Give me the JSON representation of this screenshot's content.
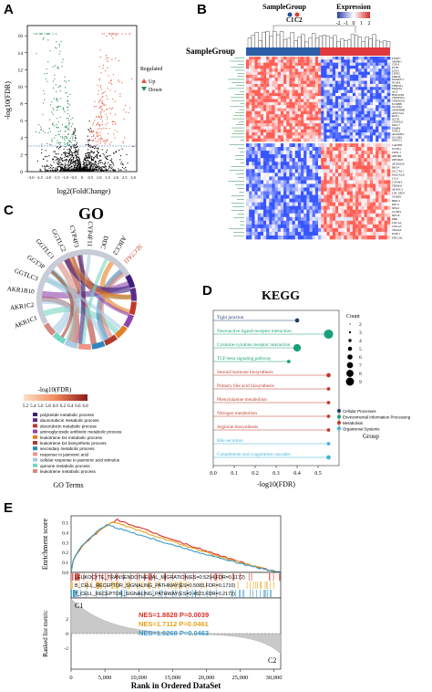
{
  "panels": {
    "A": {
      "letter": "A",
      "ylabel": "-log10(FDR)",
      "xlabel": "log2(FoldChange)",
      "legend_title": "Regulated",
      "legend_up": "Up",
      "legend_down": "Down",
      "y_ticks": [
        "0",
        "2",
        "4",
        "6",
        "8",
        "10",
        "12",
        "14",
        "16"
      ],
      "x_ticks": [
        "-3.0",
        "-2.5",
        "-2.0",
        "-1.5",
        "-1.0",
        "-0.5",
        "0",
        "0.5",
        "1.0",
        "1.5",
        "2.0",
        "2.5",
        "3.0"
      ],
      "up_color": "#e8553a",
      "down_color": "#2e8b57"
    },
    "B": {
      "letter": "B",
      "legend_group_title": "SampleGroup",
      "legend_group_items": [
        "C1",
        "C2"
      ],
      "legend_expr_title": "Expression",
      "legend_expr_ticks": [
        "-2",
        "-1",
        "0",
        "1",
        "2"
      ],
      "row_label": "SampleGroup",
      "genes_top": [
        "FOXF1",
        "SPINK1",
        "COL4",
        "PLIN",
        "GAP1",
        "CIPR2",
        "MIR4Z",
        "MAM2C7",
        "NCMA",
        "CHROL1",
        "MAOA1",
        "AGT",
        "HSD11B2",
        "TNFRSF12",
        "TMEM150",
        "ECM8B",
        "SLC8A1",
        "SERPINB8",
        "ATP13A4",
        "ROS1",
        "SCTR",
        "CFAP221",
        "MUC7",
        "FABP4",
        "VSIG2",
        "ADAMTS1",
        "SLC4B1",
        "SOSTC1"
      ],
      "genes_bottom": [
        "CADPH",
        "UCHL1",
        "CRYL1",
        "ABCB6",
        "PPP2R2C",
        "AKR1B10",
        "IRF14",
        "SLC7A11",
        "MAGAL29",
        "CA11",
        "CYP4F3",
        "TRIM41",
        "AKR1C2",
        "LNC10670",
        "STRIP2",
        "BIRC5",
        "KIF11",
        "NEK2",
        "CCNE2",
        "KIF18",
        "PBK",
        "CDCA2",
        "CDCA3",
        "TROAP",
        "ESPL1",
        "ERCC6L"
      ]
    },
    "C": {
      "letter": "C",
      "title": "GO",
      "genes": [
        "AKR1C1",
        "AKR1C2",
        "AKR1B10",
        "GGTLC3",
        "GGT3P",
        "GGTLC1",
        "GGTLC2",
        "CYP4F3",
        "CYP4F11",
        "DDC",
        "ABCC2",
        "SLC7A11"
      ],
      "scale_title": "-log10(FDR)",
      "scale_ticks": [
        "5.2",
        "5.4",
        "5.6",
        "5.8",
        "6.0",
        "6.2",
        "6.4",
        "6.6",
        "6.8"
      ],
      "terms": [
        "polyketide metabolic process",
        "daunorubicin metabolic process",
        "doxorubicin metabolic process",
        "aminoglycoside antibiotic metabolic process",
        "leukotriene D4 metabolic process",
        "leukotriene D4 biosynthetic process",
        "secondary metabolic process",
        "response to jasmonic acid",
        "cellular response to jasmonic acid stimulus",
        "quinone metabolic process",
        "leukotriene metabolic process"
      ],
      "term_colors": [
        "#3a1e7c",
        "#5b2d8a",
        "#c0392b",
        "#8e44ad",
        "#e67e22",
        "#b03a2e",
        "#2e86c1",
        "#f1948a",
        "#a9cce3",
        "#76d7c4",
        "#d98880"
      ],
      "footer": "GO Terms"
    },
    "D": {
      "letter": "D",
      "title": "KEGG",
      "xlabel": "-log10(FDR)",
      "x_ticks": [
        "0.0",
        "0.1",
        "0.2",
        "0.3",
        "0.4",
        "0.5"
      ],
      "count_title": "Count",
      "count_values": [
        "2",
        "3",
        "4",
        "5",
        "6",
        "7",
        "8",
        "9"
      ],
      "group_title": "Group",
      "groups": [
        "Cellular Processes",
        "Environmental Information Processing",
        "Metabolism",
        "Organismal Systems"
      ],
      "group_colors": [
        "#1f3b73",
        "#18a07a",
        "#c0392b",
        "#3bb4d8"
      ],
      "pathways": [
        "Tight junction",
        "Neuroactive ligand-receptor interaction",
        "Cytokine-cytokine receptor interaction",
        "TGF-beta signaling pathway",
        "Steroid hormone biosynthesis",
        "Primary bile acid biosynthesis",
        "Phenylalanine metabolism",
        "Nitrogen metabolism",
        "Arginine biosynthesis",
        "Bile secretion",
        "Complement and coagulation cascades"
      ]
    },
    "E": {
      "letter": "E",
      "ylabel_top": "Enrichment score",
      "ylabel_bottom": "Ranked list metric",
      "xlabel": "Rank in Ordered DataSet",
      "x_ticks": [
        "0",
        "5,000",
        "10,000",
        "15,000",
        "20,000",
        "25,000",
        "30,000"
      ],
      "y_ticks_top": [
        "0.0",
        "0.1",
        "0.2",
        "0.3",
        "0.4",
        "0.5"
      ],
      "y_ticks_bottom": [
        "-2",
        "0",
        "2"
      ],
      "pathway_labels": [
        "LEUKOCYTE_TRANSENDOTHELIAL_MIGRATION(ES=0.5294,FDR=0.1172)",
        "B_CELL_RECEPTOR_SIGNALING_PATHWAY(ES=0.5083,FDR=0.1710)",
        "T_CELL_RECEPTOR_SIGNALING_PATHWAY(ES=0.4823,FDR=0.2172)"
      ],
      "curve_colors": [
        "#d73027",
        "#e8a317",
        "#3a99c9"
      ],
      "stats": [
        "NES=1.8828 P=0.0039",
        "NES=1.7112 P=0.0461",
        "NES=1.6268 P=0.0463"
      ],
      "c1": "C1",
      "c2": "C2"
    }
  }
}
